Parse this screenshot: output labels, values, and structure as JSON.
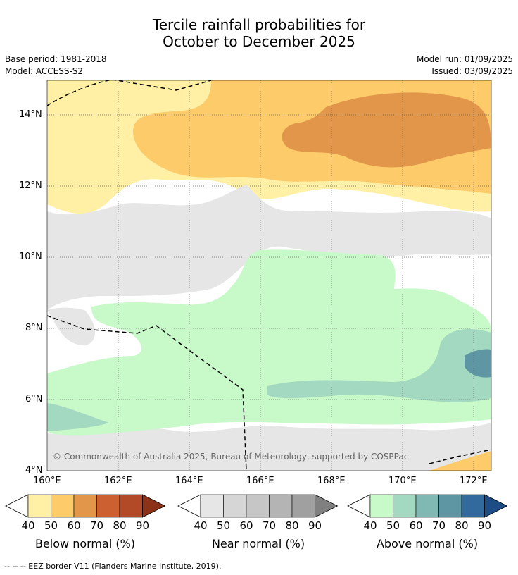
{
  "title": {
    "line1": "Tercile rainfall probabilities for",
    "line2": "October to December 2025"
  },
  "meta": {
    "base_period": "Base period: 1981-2018",
    "model": "Model: ACCESS-S2",
    "model_run": "Model run: 01/09/2025",
    "issued": "Issued: 03/09/2025"
  },
  "map": {
    "lon_labels": [
      "160°E",
      "162°E",
      "164°E",
      "166°E",
      "168°E",
      "170°E",
      "172°E"
    ],
    "lat_labels": [
      "14°N",
      "12°N",
      "10°N",
      "8°N",
      "6°N",
      "4°N"
    ],
    "copyright": "© Commonwealth of Australia 2025, Bureau of Meteorology, supported by COSPPac"
  },
  "colorbars": [
    {
      "label": "Below normal (%)",
      "ticks": [
        "40",
        "50",
        "60",
        "70",
        "80",
        "90"
      ],
      "colors": [
        "#fff0a5",
        "#fdcb6a",
        "#e2964a",
        "#cc6030",
        "#b24a28",
        "#8c3218"
      ]
    },
    {
      "label": "Near normal (%)",
      "ticks": [
        "40",
        "50",
        "60",
        "70",
        "80",
        "90"
      ],
      "colors": [
        "#e6e6e6",
        "#d6d6d6",
        "#c6c6c6",
        "#b4b4b4",
        "#a0a0a0",
        "#808080"
      ]
    },
    {
      "label": "Above normal (%)",
      "ticks": [
        "40",
        "50",
        "60",
        "70",
        "80",
        "90"
      ],
      "colors": [
        "#c8f9c8",
        "#a3d9c0",
        "#80b8b4",
        "#5e97a3",
        "#336a9e",
        "#1e4d85"
      ]
    }
  ],
  "footnote": "--  --  -- EEZ border V11 (Flanders Marine Institute, 2019)."
}
